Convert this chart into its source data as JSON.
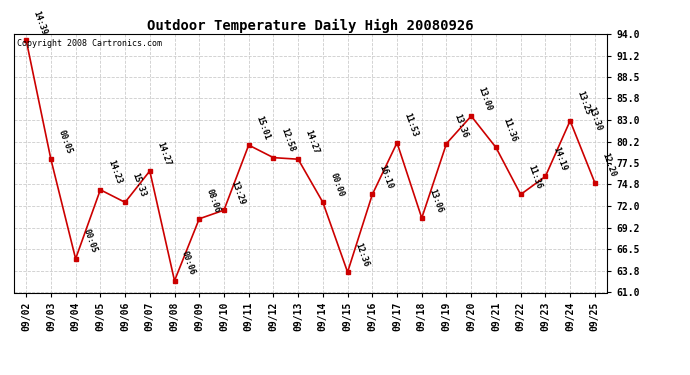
{
  "title": "Outdoor Temperature Daily High 20080926",
  "copyright": "Copyright 2008 Cartronics.com",
  "dates": [
    "09/02",
    "09/03",
    "09/04",
    "09/05",
    "09/06",
    "09/07",
    "09/08",
    "09/09",
    "09/10",
    "09/11",
    "09/12",
    "09/13",
    "09/14",
    "09/15",
    "09/16",
    "09/17",
    "09/18",
    "09/19",
    "09/20",
    "09/21",
    "09/22",
    "09/23",
    "09/24",
    "09/25"
  ],
  "y_data": [
    93.2,
    78.0,
    65.3,
    74.1,
    72.5,
    76.5,
    62.5,
    70.4,
    71.5,
    79.8,
    78.2,
    78.0,
    72.5,
    63.6,
    73.5,
    80.1,
    70.5,
    80.0,
    83.5,
    79.5,
    73.5,
    75.8,
    82.9,
    75.0
  ],
  "point_labels": [
    "14:39",
    "00:05",
    "00:05",
    "14:23",
    "15:33",
    "14:27",
    "00:06",
    "08:06",
    "13:29",
    "15:01",
    "12:58",
    "14:27",
    "00:00",
    "12:36",
    "16:10",
    "11:53",
    "13:06",
    "13:36",
    "13:00",
    "11:36",
    "11:36",
    "14:19",
    "13:25",
    "12:20"
  ],
  "extra_label_idx": 22,
  "extra_label": "13:30",
  "ylim": [
    61.0,
    94.0
  ],
  "yticks": [
    61.0,
    63.8,
    66.5,
    69.2,
    72.0,
    74.8,
    77.5,
    80.2,
    83.0,
    85.8,
    88.5,
    91.2,
    94.0
  ],
  "line_color": "#cc0000",
  "grid_color": "#cccccc",
  "bg_color": "#ffffff",
  "title_fontsize": 10,
  "tick_fontsize": 7,
  "annot_fontsize": 6,
  "copyright_fontsize": 6
}
